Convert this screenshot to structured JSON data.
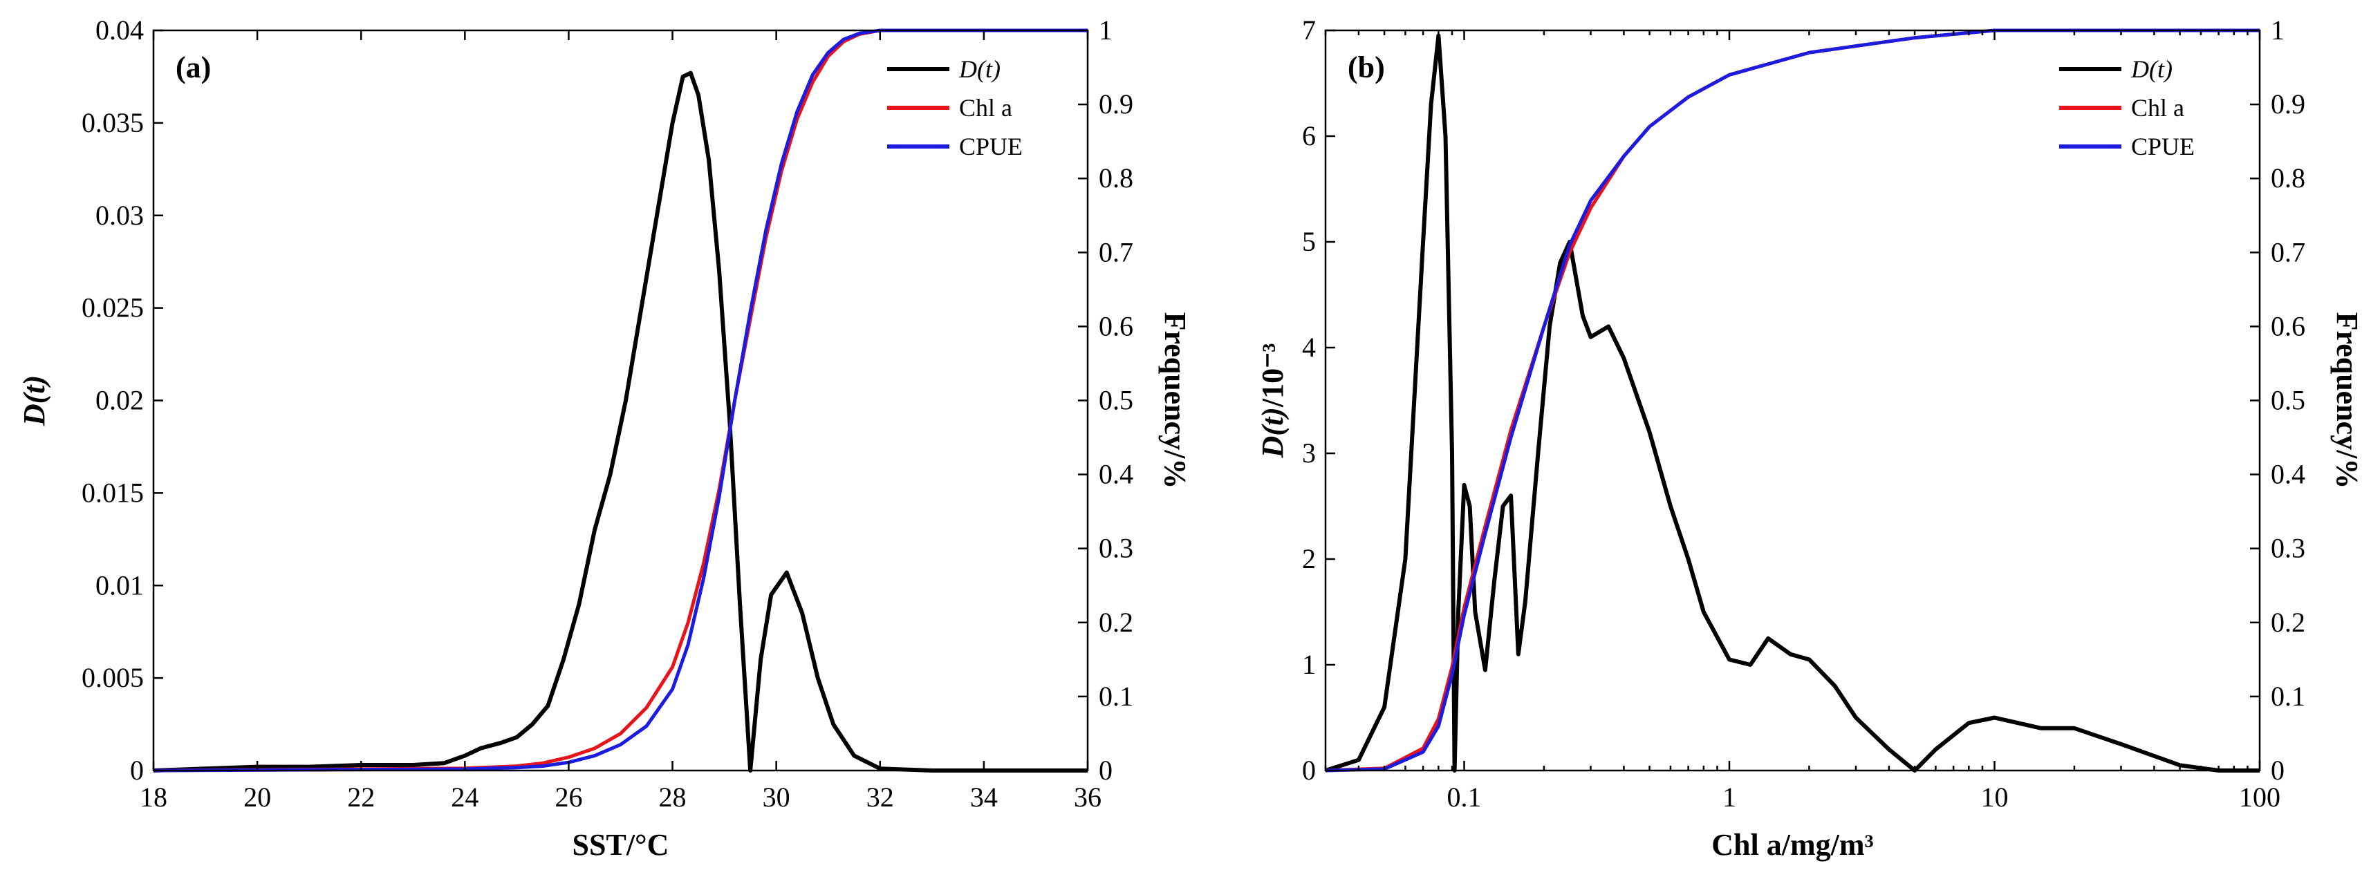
{
  "chart_data": [
    {
      "type": "line",
      "panel_label": "(a)",
      "xlabel": "SST/°C",
      "ylabel_italic": "D(t)",
      "ylabel_rest": "",
      "y2label": "Frequency/%",
      "x_scale": "linear",
      "xlim": [
        18,
        36
      ],
      "ylim": [
        0,
        0.04
      ],
      "y2lim": [
        0,
        1
      ],
      "xticks": [
        18,
        20,
        22,
        24,
        26,
        28,
        30,
        32,
        34,
        36
      ],
      "xtick_labels": [
        "18",
        "20",
        "22",
        "24",
        "26",
        "28",
        "30",
        "32",
        "34",
        "36"
      ],
      "yticks": [
        0,
        0.005,
        0.01,
        0.015,
        0.02,
        0.025,
        0.03,
        0.035,
        0.04
      ],
      "ytick_labels": [
        "0",
        "0.005",
        "0.01",
        "0.015",
        "0.02",
        "0.025",
        "0.03",
        "0.035",
        "0.04"
      ],
      "y2ticks": [
        0,
        0.1,
        0.2,
        0.3,
        0.4,
        0.5,
        0.6,
        0.7,
        0.8,
        0.9,
        1
      ],
      "y2tick_labels": [
        "0",
        "0.1",
        "0.2",
        "0.3",
        "0.4",
        "0.5",
        "0.6",
        "0.7",
        "0.8",
        "0.9",
        "1"
      ],
      "legend_position": "top-right",
      "series": [
        {
          "name": "D(t)",
          "italic": true,
          "axis": "left",
          "color": "#000000",
          "points": [
            [
              18,
              0
            ],
            [
              19,
              0.0001
            ],
            [
              20,
              0.0002
            ],
            [
              21,
              0.0002
            ],
            [
              22,
              0.0003
            ],
            [
              23,
              0.0003
            ],
            [
              23.6,
              0.0004
            ],
            [
              24,
              0.0008
            ],
            [
              24.3,
              0.0012
            ],
            [
              24.7,
              0.0015
            ],
            [
              25,
              0.0018
            ],
            [
              25.3,
              0.0025
            ],
            [
              25.6,
              0.0035
            ],
            [
              25.9,
              0.006
            ],
            [
              26.2,
              0.009
            ],
            [
              26.5,
              0.013
            ],
            [
              26.8,
              0.016
            ],
            [
              27.1,
              0.02
            ],
            [
              27.4,
              0.025
            ],
            [
              27.7,
              0.03
            ],
            [
              28,
              0.035
            ],
            [
              28.2,
              0.0375
            ],
            [
              28.35,
              0.0377
            ],
            [
              28.5,
              0.0365
            ],
            [
              28.7,
              0.033
            ],
            [
              28.9,
              0.027
            ],
            [
              29.1,
              0.019
            ],
            [
              29.3,
              0.009
            ],
            [
              29.5,
              0
            ],
            [
              29.7,
              0.006
            ],
            [
              29.9,
              0.0095
            ],
            [
              30.2,
              0.0107
            ],
            [
              30.5,
              0.0085
            ],
            [
              30.8,
              0.005
            ],
            [
              31.1,
              0.0025
            ],
            [
              31.5,
              0.0008
            ],
            [
              32,
              0.0001
            ],
            [
              33,
              0
            ],
            [
              36,
              0
            ]
          ]
        },
        {
          "name": "Chl a",
          "italic": false,
          "axis": "right",
          "color": "#e8141b",
          "points": [
            [
              18,
              0
            ],
            [
              24,
              0.003
            ],
            [
              25,
              0.006
            ],
            [
              25.5,
              0.01
            ],
            [
              26,
              0.018
            ],
            [
              26.5,
              0.03
            ],
            [
              27,
              0.05
            ],
            [
              27.5,
              0.085
            ],
            [
              28,
              0.14
            ],
            [
              28.3,
              0.2
            ],
            [
              28.6,
              0.28
            ],
            [
              28.9,
              0.38
            ],
            [
              29.2,
              0.5
            ],
            [
              29.5,
              0.61
            ],
            [
              29.8,
              0.72
            ],
            [
              30.1,
              0.81
            ],
            [
              30.4,
              0.88
            ],
            [
              30.7,
              0.93
            ],
            [
              31,
              0.965
            ],
            [
              31.3,
              0.985
            ],
            [
              31.6,
              0.995
            ],
            [
              32,
              1
            ],
            [
              36,
              1
            ]
          ]
        },
        {
          "name": "CPUE",
          "italic": false,
          "axis": "right",
          "color": "#1c1ce0",
          "points": [
            [
              18,
              0
            ],
            [
              24,
              0.002
            ],
            [
              25,
              0.004
            ],
            [
              25.5,
              0.006
            ],
            [
              26,
              0.011
            ],
            [
              26.5,
              0.02
            ],
            [
              27,
              0.035
            ],
            [
              27.5,
              0.06
            ],
            [
              28,
              0.11
            ],
            [
              28.3,
              0.17
            ],
            [
              28.6,
              0.26
            ],
            [
              28.9,
              0.37
            ],
            [
              29.2,
              0.5
            ],
            [
              29.5,
              0.62
            ],
            [
              29.8,
              0.73
            ],
            [
              30.1,
              0.82
            ],
            [
              30.4,
              0.89
            ],
            [
              30.7,
              0.94
            ],
            [
              31,
              0.97
            ],
            [
              31.3,
              0.988
            ],
            [
              31.6,
              0.996
            ],
            [
              32,
              1
            ],
            [
              36,
              1
            ]
          ]
        }
      ]
    },
    {
      "type": "line",
      "panel_label": "(b)",
      "xlabel": "Chl a/mg/m³",
      "ylabel_italic": "D(t)",
      "ylabel_rest": "/10⁻³",
      "y2label": "Frequency/%",
      "x_scale": "log",
      "xlim": [
        0.03,
        100
      ],
      "ylim": [
        0,
        7
      ],
      "y2lim": [
        0,
        1
      ],
      "xticks": [
        0.1,
        1,
        10,
        100
      ],
      "xtick_labels": [
        "0.1",
        "1",
        "10",
        "100"
      ],
      "yticks": [
        0,
        1,
        2,
        3,
        4,
        5,
        6,
        7
      ],
      "ytick_labels": [
        "0",
        "1",
        "2",
        "3",
        "4",
        "5",
        "6",
        "7"
      ],
      "y2ticks": [
        0,
        0.1,
        0.2,
        0.3,
        0.4,
        0.5,
        0.6,
        0.7,
        0.8,
        0.9,
        1
      ],
      "y2tick_labels": [
        "0",
        "0.1",
        "0.2",
        "0.3",
        "0.4",
        "0.5",
        "0.6",
        "0.7",
        "0.8",
        "0.9",
        "1"
      ],
      "legend_position": "top-right",
      "series": [
        {
          "name": "D(t)",
          "italic": true,
          "axis": "left",
          "color": "#000000",
          "points": [
            [
              0.03,
              0
            ],
            [
              0.04,
              0.1
            ],
            [
              0.05,
              0.6
            ],
            [
              0.06,
              2
            ],
            [
              0.07,
              5
            ],
            [
              0.075,
              6.3
            ],
            [
              0.08,
              6.95
            ],
            [
              0.085,
              6
            ],
            [
              0.09,
              3
            ],
            [
              0.092,
              0
            ],
            [
              0.095,
              1.5
            ],
            [
              0.1,
              2.7
            ],
            [
              0.105,
              2.5
            ],
            [
              0.11,
              1.5
            ],
            [
              0.12,
              0.95
            ],
            [
              0.13,
              1.8
            ],
            [
              0.14,
              2.5
            ],
            [
              0.15,
              2.6
            ],
            [
              0.16,
              1.1
            ],
            [
              0.17,
              1.6
            ],
            [
              0.19,
              3
            ],
            [
              0.21,
              4.2
            ],
            [
              0.23,
              4.8
            ],
            [
              0.25,
              5
            ],
            [
              0.28,
              4.3
            ],
            [
              0.3,
              4.1
            ],
            [
              0.35,
              4.2
            ],
            [
              0.4,
              3.9
            ],
            [
              0.5,
              3.2
            ],
            [
              0.6,
              2.5
            ],
            [
              0.7,
              2
            ],
            [
              0.8,
              1.5
            ],
            [
              1,
              1.05
            ],
            [
              1.2,
              1
            ],
            [
              1.4,
              1.25
            ],
            [
              1.7,
              1.1
            ],
            [
              2,
              1.05
            ],
            [
              2.5,
              0.8
            ],
            [
              3,
              0.5
            ],
            [
              4,
              0.2
            ],
            [
              5,
              0
            ],
            [
              6,
              0.2
            ],
            [
              8,
              0.45
            ],
            [
              10,
              0.5
            ],
            [
              15,
              0.4
            ],
            [
              20,
              0.4
            ],
            [
              30,
              0.25
            ],
            [
              50,
              0.05
            ],
            [
              70,
              0
            ],
            [
              100,
              0
            ]
          ]
        },
        {
          "name": "Chl a",
          "italic": false,
          "axis": "right",
          "color": "#e8141b",
          "points": [
            [
              0.03,
              0
            ],
            [
              0.05,
              0.003
            ],
            [
              0.07,
              0.03
            ],
            [
              0.08,
              0.07
            ],
            [
              0.09,
              0.14
            ],
            [
              0.1,
              0.22
            ],
            [
              0.12,
              0.33
            ],
            [
              0.15,
              0.46
            ],
            [
              0.2,
              0.6
            ],
            [
              0.25,
              0.7
            ],
            [
              0.3,
              0.76
            ],
            [
              0.4,
              0.83
            ],
            [
              0.5,
              0.87
            ],
            [
              0.7,
              0.91
            ],
            [
              1,
              0.94
            ],
            [
              2,
              0.97
            ],
            [
              5,
              0.99
            ],
            [
              10,
              1
            ],
            [
              100,
              1
            ]
          ]
        },
        {
          "name": "CPUE",
          "italic": false,
          "axis": "right",
          "color": "#1c1ce0",
          "points": [
            [
              0.03,
              0
            ],
            [
              0.05,
              0.002
            ],
            [
              0.07,
              0.025
            ],
            [
              0.08,
              0.06
            ],
            [
              0.09,
              0.13
            ],
            [
              0.1,
              0.21
            ],
            [
              0.12,
              0.32
            ],
            [
              0.15,
              0.45
            ],
            [
              0.2,
              0.6
            ],
            [
              0.25,
              0.71
            ],
            [
              0.3,
              0.77
            ],
            [
              0.4,
              0.83
            ],
            [
              0.5,
              0.87
            ],
            [
              0.7,
              0.91
            ],
            [
              1,
              0.94
            ],
            [
              2,
              0.97
            ],
            [
              5,
              0.99
            ],
            [
              10,
              1
            ],
            [
              100,
              1
            ]
          ]
        }
      ]
    }
  ]
}
